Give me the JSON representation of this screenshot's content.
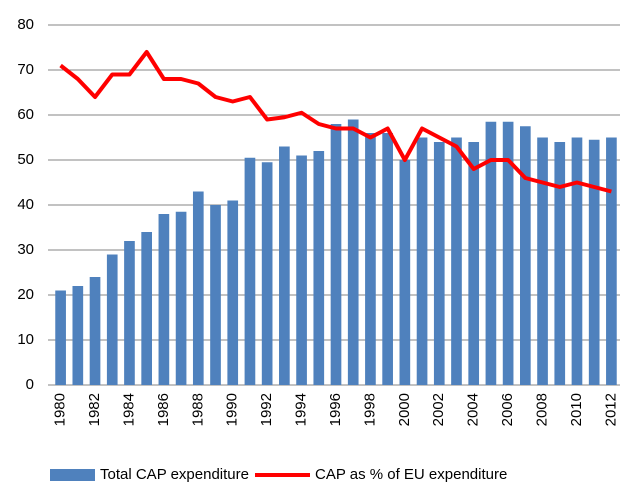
{
  "chart_data": {
    "type": "bar",
    "categories": [
      "1980",
      null,
      "1982",
      null,
      "1984",
      null,
      "1986",
      null,
      "1988",
      null,
      "1990",
      null,
      "1992",
      null,
      "1994",
      null,
      "1996",
      null,
      "1998",
      null,
      "2000",
      null,
      "2002",
      null,
      "2004",
      null,
      "2006",
      null,
      "2008",
      null,
      "2010",
      null,
      "2012"
    ],
    "series": [
      {
        "name": "Total CAP expenditure",
        "type": "bar",
        "color": "#4f81bd",
        "values": [
          21,
          22,
          24,
          29,
          32,
          34,
          38,
          38.5,
          43,
          40,
          41,
          50.5,
          49.5,
          53,
          51,
          52,
          58,
          59,
          56,
          56,
          50,
          55,
          54,
          55,
          54,
          58.5,
          58.5,
          57.5,
          55,
          54,
          55,
          54.5,
          55
        ]
      },
      {
        "name": "CAP as % of EU expenditure",
        "type": "line",
        "color": "#ff0000",
        "values": [
          71,
          68,
          64,
          69,
          69,
          74,
          68,
          68,
          67,
          64,
          63,
          64,
          59,
          59.5,
          60.5,
          58,
          57,
          57,
          55,
          57,
          50,
          57,
          55,
          53,
          48,
          50,
          50,
          46,
          45,
          44,
          45,
          44,
          43
        ]
      }
    ],
    "ylim": [
      0,
      80
    ],
    "yticks": [
      0,
      10,
      20,
      30,
      40,
      50,
      60,
      70,
      80
    ],
    "grid": true,
    "legend": "bottom"
  }
}
